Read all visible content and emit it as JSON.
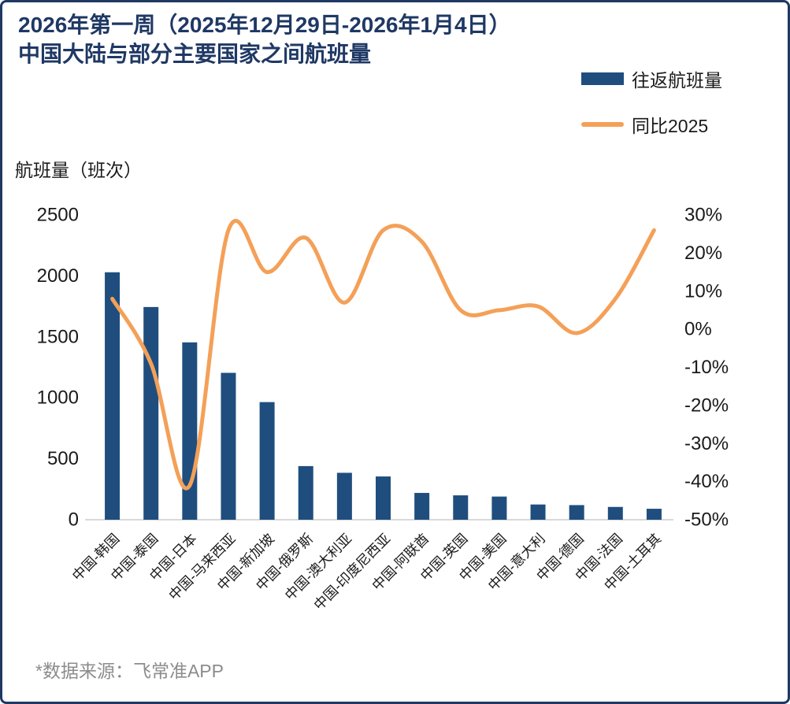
{
  "title": {
    "line1": "2026年第一周（2025年12月29日-2026年1月4日）",
    "line2": "中国大陆与部分主要国家之间航班量"
  },
  "legend": [
    {
      "label": "往返航班量",
      "swatch": "bar-swatch",
      "type": "bar"
    },
    {
      "label": "同比2025",
      "swatch": "line-swatch",
      "type": "line"
    }
  ],
  "source_note": "*数据来源：飞常准APP",
  "colors": {
    "bar": "#1F4E7E",
    "line": "#F4A058",
    "title": "#1F3864",
    "border": "#1F3864",
    "axis_line": "#D9D9D9",
    "tick_text": "#1a1a1a",
    "source_text": "#8C8C8C"
  },
  "chart_data": {
    "type": "combo_bar_line",
    "title": "2026年第一周（2025年12月29日-2026年1月4日）中国大陆与部分主要国家之间航班量",
    "categories": [
      "中国-韩国",
      "中国-泰国",
      "中国-日本",
      "中国-马来西亚",
      "中国-新加坡",
      "中国-俄罗斯",
      "中国-澳大利亚",
      "中国-印度尼西亚",
      "中国-阿联酋",
      "中国-英国",
      "中国-美国",
      "中国-意大利",
      "中国-德国",
      "中国-法国",
      "中国-土耳其"
    ],
    "series": [
      {
        "name": "往返航班量",
        "type": "bar",
        "axis": "left",
        "values": [
          2030,
          1745,
          1455,
          1205,
          965,
          440,
          385,
          355,
          220,
          200,
          190,
          125,
          120,
          105,
          90
        ]
      },
      {
        "name": "同比2025",
        "type": "line",
        "axis": "right",
        "unit": "%",
        "values": [
          8,
          -9,
          -41,
          26,
          15,
          24,
          7,
          26,
          23,
          5,
          5,
          6,
          -1,
          8,
          26
        ]
      }
    ],
    "left_axis": {
      "title": "航班量（班次）",
      "min": 0,
      "max": 2500,
      "tick_labels": [
        "2500",
        "2000",
        "1500",
        "1000",
        "500",
        "0"
      ]
    },
    "right_axis": {
      "min": -50,
      "max": 30,
      "tick_labels": [
        "30%",
        "20%",
        "10%",
        "0%",
        "-10%",
        "-20%",
        "-30%",
        "-40%",
        "-50%"
      ]
    },
    "grid": false,
    "legend_position": "top-right",
    "x_label_rotation_deg": -45
  }
}
